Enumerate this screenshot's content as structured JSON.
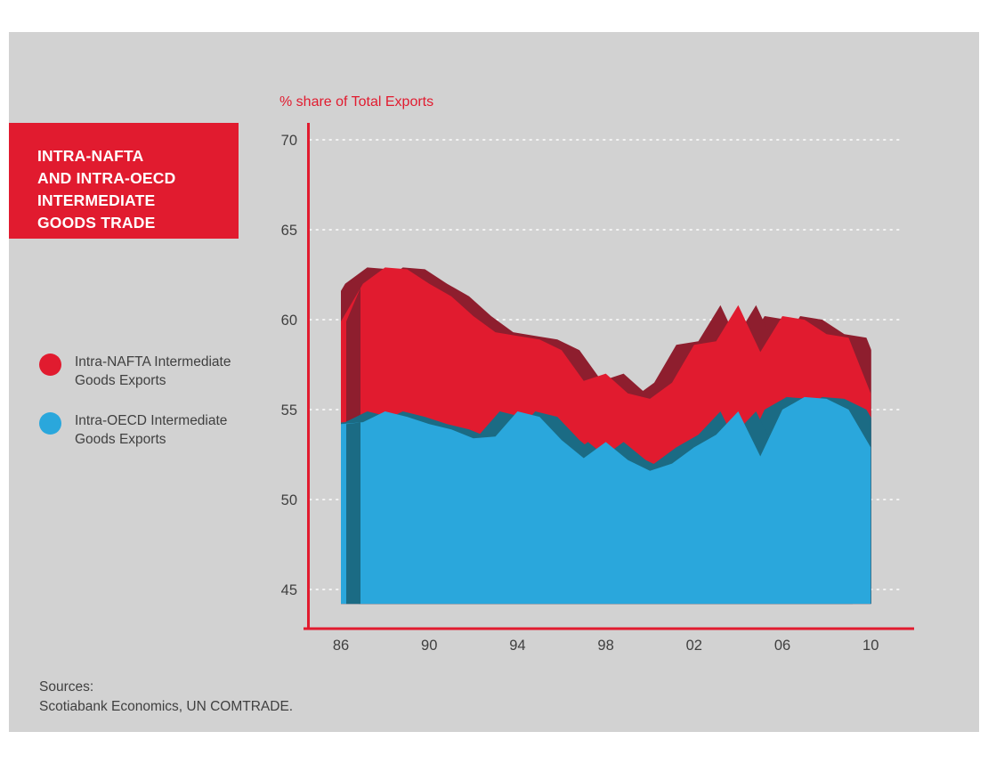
{
  "page": {
    "background_color": "#ffffff",
    "panel_color": "#d2d2d2"
  },
  "title_box": {
    "bg_color": "#e11b2f",
    "text_color": "#ffffff",
    "lines": [
      "INTRA-NAFTA",
      "AND INTRA-OECD",
      "INTERMEDIATE",
      "GOODS TRADE"
    ]
  },
  "axis_title": "% share of Total Exports",
  "legend": {
    "items": [
      {
        "color": "#e11b2f",
        "label_line1": "Intra-NAFTA Intermediate",
        "label_line2": "Goods Exports"
      },
      {
        "color": "#2aa7dc",
        "label_line1": "Intra-OECD Intermediate",
        "label_line2": "Goods Exports"
      }
    ]
  },
  "sources": {
    "line1": "Sources:",
    "line2": "Scotiabank Economics, UN COMTRADE."
  },
  "chart_data": {
    "type": "area",
    "title": "Intra-NAFTA and Intra-OECD Intermediate Goods Trade",
    "ylabel": "% share of Total Exports",
    "x": [
      1986,
      1987,
      1988,
      1989,
      1990,
      1991,
      1992,
      1993,
      1994,
      1995,
      1996,
      1997,
      1998,
      1999,
      2000,
      2001,
      2002,
      2003,
      2004,
      2005,
      2006,
      2007,
      2008,
      2009,
      2010
    ],
    "x_tick_years": [
      1986,
      1990,
      1994,
      1998,
      2002,
      2006,
      2010
    ],
    "x_tick_labels": [
      "86",
      "90",
      "94",
      "98",
      "02",
      "06",
      "10"
    ],
    "y_ticks": [
      45,
      50,
      55,
      60,
      65,
      70
    ],
    "ylim": [
      44.2,
      70
    ],
    "grid": "dotted-horizontal",
    "legend_position": "left",
    "axis_color": "#e11b2f",
    "tick_label_color": "#404040",
    "baseline": 44.2,
    "series": [
      {
        "name": "Intra-NAFTA Intermediate Goods Exports",
        "color": "#e11b2f",
        "shadow_color": "#8e1e2e",
        "values": [
          59.9,
          62.0,
          62.9,
          62.8,
          62.0,
          61.3,
          60.2,
          59.3,
          59.1,
          58.9,
          58.3,
          56.6,
          57.0,
          55.9,
          55.6,
          56.5,
          58.6,
          58.8,
          60.8,
          58.2,
          60.2,
          60.0,
          59.2,
          59.0,
          55.9
        ]
      },
      {
        "name": "Intra-OECD Intermediate Goods Exports",
        "color": "#2aa7dc",
        "shadow_color": "#1b6b84",
        "values": [
          54.2,
          54.3,
          54.9,
          54.6,
          54.2,
          53.9,
          53.4,
          53.5,
          54.9,
          54.6,
          53.3,
          52.3,
          53.2,
          52.2,
          51.6,
          52.0,
          52.9,
          53.6,
          54.9,
          52.4,
          55.0,
          55.7,
          55.6,
          55.0,
          52.9
        ]
      }
    ]
  }
}
